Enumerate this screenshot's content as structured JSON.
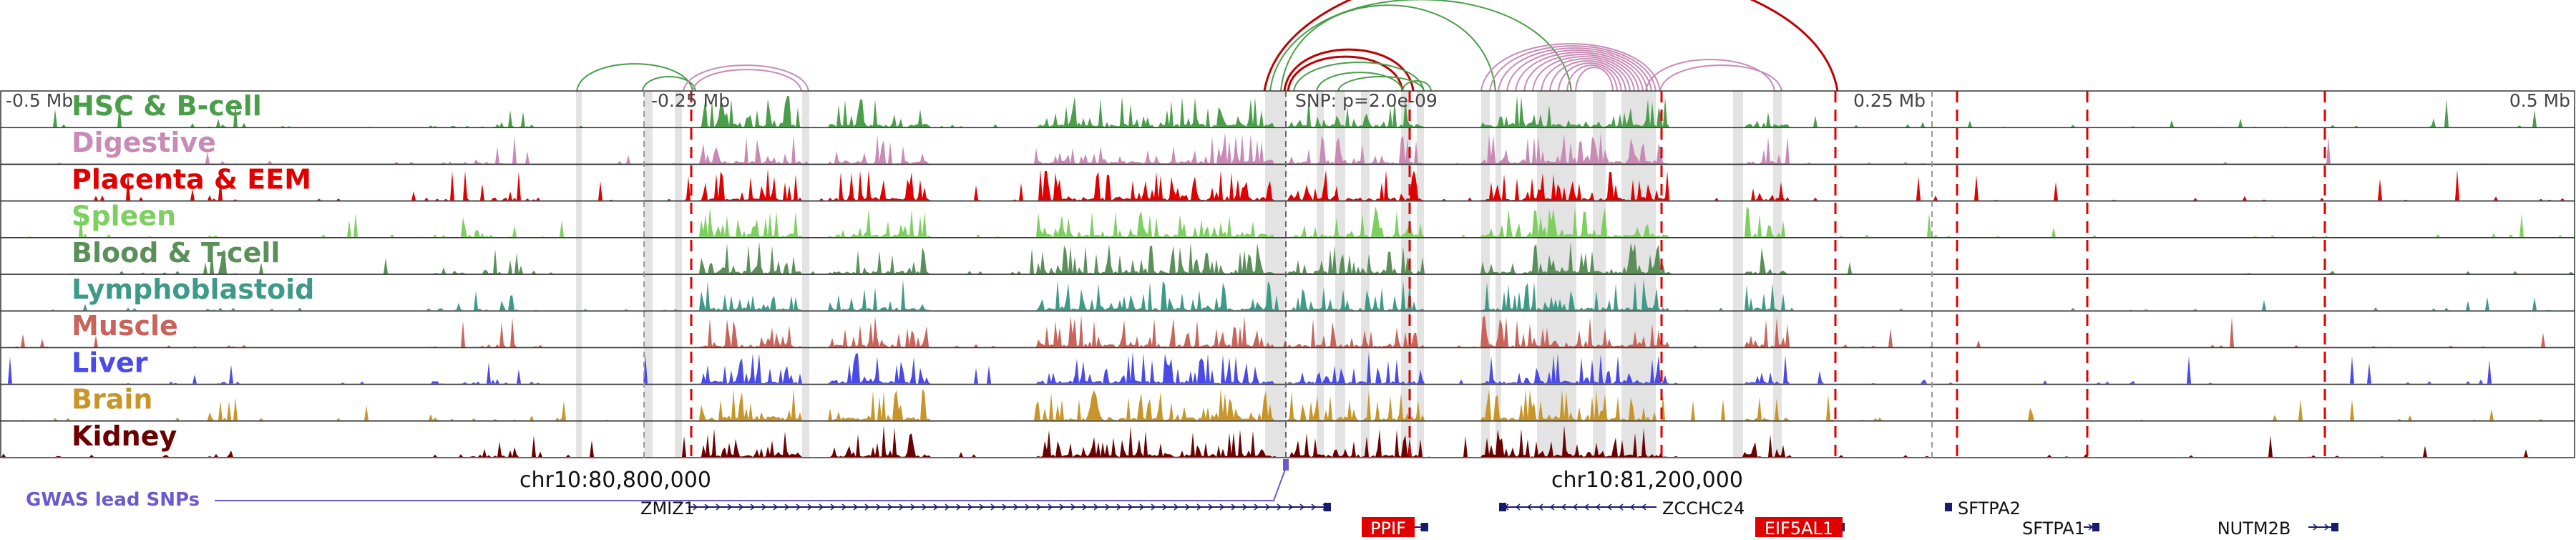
{
  "axis": {
    "ticks": [
      {
        "label": "-0.5 Mb",
        "anchor": "start"
      },
      {
        "label": "-0.25 Mb",
        "anchor": "start"
      },
      {
        "label": "SNP: p=2.0e-09",
        "anchor": "start"
      },
      {
        "label": "0.25 Mb",
        "anchor": "start"
      },
      {
        "label": "0.5 Mb",
        "anchor": "end"
      }
    ],
    "coordinates": [
      "chr10:80,800,000",
      "chr10:81,200,000"
    ]
  },
  "tracks": [
    {
      "label": "HSC & B-cell",
      "color": "#4a9e4a"
    },
    {
      "label": "Digestive",
      "color": "#c98bb5"
    },
    {
      "label": "Placenta & EEM",
      "color": "#e00000"
    },
    {
      "label": "Spleen",
      "color": "#7dd060"
    },
    {
      "label": "Blood & T-cell",
      "color": "#5a8f5a"
    },
    {
      "label": "Lymphoblastoid",
      "color": "#3e9a88"
    },
    {
      "label": "Muscle",
      "color": "#c8645a"
    },
    {
      "label": "Liver",
      "color": "#4a4ae8"
    },
    {
      "label": "Brain",
      "color": "#c89628"
    },
    {
      "label": "Kidney",
      "color": "#6b0000"
    }
  ],
  "gwas": {
    "label": "GWAS lead SNPs",
    "color": "#6a5acd"
  },
  "genes": [
    {
      "name": "ZMIZ1",
      "highlight": false
    },
    {
      "name": "ZCCHC24",
      "highlight": false
    },
    {
      "name": "SFTPA2",
      "highlight": false
    },
    {
      "name": "PPIF",
      "highlight": true
    },
    {
      "name": "EIF5AL1",
      "highlight": true
    },
    {
      "name": "SFTPA1",
      "highlight": false
    },
    {
      "name": "NUTM2B",
      "highlight": false
    }
  ],
  "colors": {
    "snp_line": "#e00000",
    "loop_green": "#4a9e4a",
    "loop_pink": "#c98bb5",
    "loop_red": "#c00000",
    "gene": "#1a1a6e"
  }
}
